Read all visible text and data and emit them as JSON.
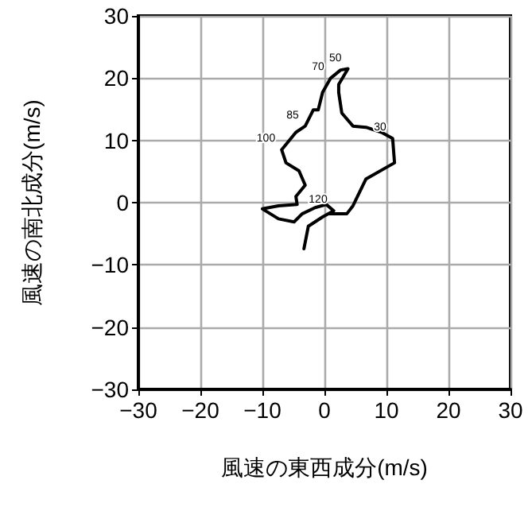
{
  "chart_data": {
    "type": "line",
    "xlabel": "風速の東西成分(m/s)",
    "ylabel": "風速の南北成分(m/s)",
    "series": [
      {
        "color": "#000000",
        "x": [
          -3.3,
          -2.6,
          -0.3,
          1.5,
          0.3,
          -1.5,
          -3.6,
          -4.9,
          -7.4,
          -10,
          -7.4,
          -4.4,
          -4.6,
          -3.1,
          -4.1,
          -6.2,
          -6.9,
          -4.6,
          -3.1,
          -1.8,
          -1,
          -0.3,
          1,
          2.6,
          3.8,
          2.3,
          2.3,
          2.8,
          4.6,
          6.7,
          9.2,
          11,
          11.3,
          6.7,
          4.6,
          3.6,
          0.8
        ],
        "values": [
          -7.4,
          -3.8,
          -2.3,
          -1.3,
          -0.3,
          -0.8,
          -1.8,
          -3.1,
          -2.6,
          -1,
          -0.5,
          -0.3,
          1,
          2.8,
          5.1,
          6.4,
          8.5,
          11.3,
          12.3,
          14.9,
          14.9,
          17.7,
          20,
          21.3,
          21.5,
          19,
          17.7,
          14.4,
          12.3,
          12.1,
          11.3,
          10.3,
          6.4,
          3.8,
          -0.5,
          -1.8,
          -1.8
        ]
      }
    ],
    "annotations": [
      {
        "text": "30",
        "x": 11,
        "y": 10.3
      },
      {
        "text": "50",
        "x": 3.8,
        "y": 21.5
      },
      {
        "text": "70",
        "x": 1,
        "y": 20
      },
      {
        "text": "85",
        "x": -3.1,
        "y": 12.3
      },
      {
        "text": "100",
        "x": -6.9,
        "y": 8.5
      },
      {
        "text": "120",
        "x": 1.5,
        "y": -1.3
      }
    ],
    "xlim": [
      -30,
      30
    ],
    "ylim": [
      -30,
      30
    ],
    "xticks": [
      -30,
      -20,
      -10,
      0,
      10,
      20,
      30
    ],
    "yticks": [
      -30,
      -20,
      -10,
      0,
      10,
      20,
      30
    ],
    "grid": true,
    "marker": "none",
    "line_style": "solid"
  }
}
